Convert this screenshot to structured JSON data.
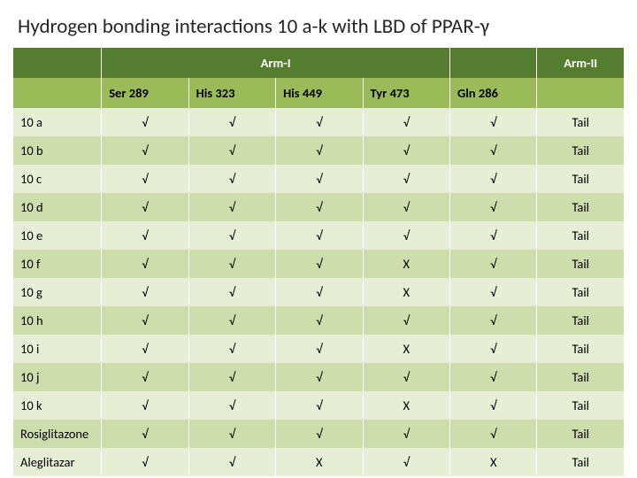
{
  "title": "Hydrogen bonding interactions 10 a-k with LBD of PPAR-γ",
  "colors": {
    "header_top_bg": "#557d2f",
    "header_top_text": "#ffffff",
    "header_sub_bg": "#9bbb59",
    "row_odd_bg": "#e6eed6",
    "row_even_bg": "#cdddac",
    "text": "#000000"
  },
  "top_headers": {
    "arm1": "Arm-I",
    "arm2": "Arm-II"
  },
  "residues": [
    "Ser 289",
    "His 323",
    "His 449",
    "Tyr 473",
    "Gln 286"
  ],
  "rows": [
    {
      "label": "10 a",
      "cells": [
        "√",
        "√",
        "√",
        "√",
        "√",
        "Tail"
      ]
    },
    {
      "label": "10 b",
      "cells": [
        "√",
        "√",
        "√",
        "√",
        "√",
        "Tail"
      ]
    },
    {
      "label": "10 c",
      "cells": [
        "√",
        "√",
        "√",
        "√",
        "√",
        "Tail"
      ]
    },
    {
      "label": "10 d",
      "cells": [
        "√",
        "√",
        "√",
        "√",
        "√",
        "Tail"
      ]
    },
    {
      "label": "10 e",
      "cells": [
        "√",
        "√",
        "√",
        "√",
        "√",
        "Tail"
      ]
    },
    {
      "label": "10 f",
      "cells": [
        "√",
        "√",
        "√",
        "X",
        "√",
        "Tail"
      ]
    },
    {
      "label": "10 g",
      "cells": [
        "√",
        "√",
        "√",
        "X",
        "√",
        "Tail"
      ]
    },
    {
      "label": "10 h",
      "cells": [
        "√",
        "√",
        "√",
        "√",
        "√",
        "Tail"
      ]
    },
    {
      "label": "10 i",
      "cells": [
        "√",
        "√",
        "√",
        "X",
        "√",
        "Tail"
      ]
    },
    {
      "label": "10 j",
      "cells": [
        "√",
        "√",
        "√",
        "√",
        "√",
        "Tail"
      ]
    },
    {
      "label": "10 k",
      "cells": [
        "√",
        "√",
        "√",
        "X",
        "√",
        "Tail"
      ]
    },
    {
      "label": "Rosiglitazone",
      "cells": [
        "√",
        "√",
        "√",
        "√",
        "√",
        "Tail"
      ]
    },
    {
      "label": "Aleglitazar",
      "cells": [
        "√",
        "√",
        "X",
        "√",
        "X",
        "Tail"
      ]
    }
  ]
}
